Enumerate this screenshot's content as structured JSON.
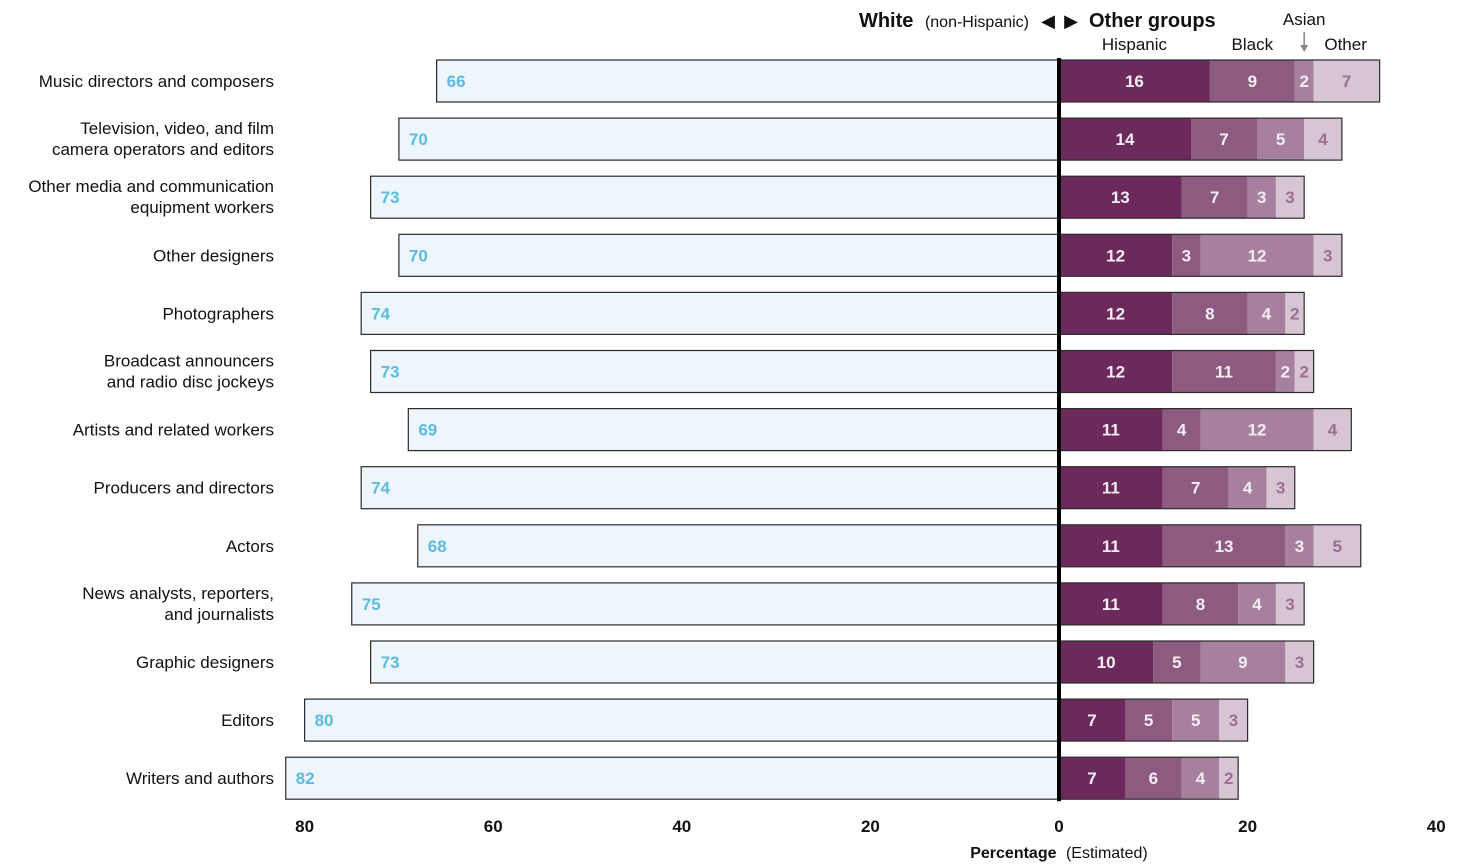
{
  "colors": {
    "white_fill": "#eef6fc",
    "white_label": "#5bbbe0",
    "bar_stroke": "#2b2b2b",
    "hispanic": "#6b2a5b",
    "black": "#8d5a80",
    "asian": "#a6809e",
    "other": "#d8c5d4",
    "label_light": "#f4eef3",
    "label_other": "#9a6f92"
  },
  "header": {
    "white_bold": "White",
    "white_note": "(non-Hispanic)",
    "left_arrow": "◀",
    "right_arrow": "▶",
    "other_groups": "Other groups"
  },
  "xaxis": {
    "label_bold": "Percentage",
    "label_note": "(Estimated)"
  },
  "chart_data": {
    "type": "bar",
    "orientation": "horizontal-diverging",
    "xlim": [
      -80,
      40
    ],
    "x_ticks": [
      {
        "value": -80,
        "label": "80"
      },
      {
        "value": -60,
        "label": "60"
      },
      {
        "value": -40,
        "label": "40"
      },
      {
        "value": -20,
        "label": "20"
      },
      {
        "value": 0,
        "label": "0"
      },
      {
        "value": 20,
        "label": "20"
      },
      {
        "value": 40,
        "label": "40"
      }
    ],
    "xlabel": "Percentage (Estimated)",
    "left_group": "White (non-Hispanic)",
    "right_group": "Other groups",
    "series_order": [
      "Hispanic",
      "Black",
      "Asian",
      "Other"
    ],
    "legend": [
      {
        "name": "Hispanic",
        "key": "hispanic"
      },
      {
        "name": "Black",
        "key": "black"
      },
      {
        "name": "Asian",
        "key": "asian"
      },
      {
        "name": "Other",
        "key": "other"
      }
    ],
    "categories": [
      {
        "name": "Music directors and composers",
        "white": 66,
        "hispanic": 16,
        "black": 9,
        "asian": 2,
        "other": 7
      },
      {
        "name": "Television, video, and film\ncamera operators and editors",
        "white": 70,
        "hispanic": 14,
        "black": 7,
        "asian": 5,
        "other": 4
      },
      {
        "name": "Other media and communication\nequipment workers",
        "white": 73,
        "hispanic": 13,
        "black": 7,
        "asian": 3,
        "other": 3
      },
      {
        "name": "Other designers",
        "white": 70,
        "hispanic": 12,
        "black": 3,
        "asian": 12,
        "other": 3
      },
      {
        "name": "Photographers",
        "white": 74,
        "hispanic": 12,
        "black": 8,
        "asian": 4,
        "other": 2
      },
      {
        "name": "Broadcast announcers\nand radio disc jockeys",
        "white": 73,
        "hispanic": 12,
        "black": 11,
        "asian": 2,
        "other": 2
      },
      {
        "name": "Artists and related workers",
        "white": 69,
        "hispanic": 11,
        "black": 4,
        "asian": 12,
        "other": 4
      },
      {
        "name": "Producers and directors",
        "white": 74,
        "hispanic": 11,
        "black": 7,
        "asian": 4,
        "other": 3
      },
      {
        "name": "Actors",
        "white": 68,
        "hispanic": 11,
        "black": 13,
        "asian": 3,
        "other": 5
      },
      {
        "name": "News analysts, reporters,\nand journalists",
        "white": 75,
        "hispanic": 11,
        "black": 8,
        "asian": 4,
        "other": 3
      },
      {
        "name": "Graphic designers",
        "white": 73,
        "hispanic": 10,
        "black": 5,
        "asian": 9,
        "other": 3
      },
      {
        "name": "Editors",
        "white": 80,
        "hispanic": 7,
        "black": 5,
        "asian": 5,
        "other": 3
      },
      {
        "name": "Writers and authors",
        "white": 82,
        "hispanic": 7,
        "black": 6,
        "asian": 4,
        "other": 2
      }
    ]
  }
}
